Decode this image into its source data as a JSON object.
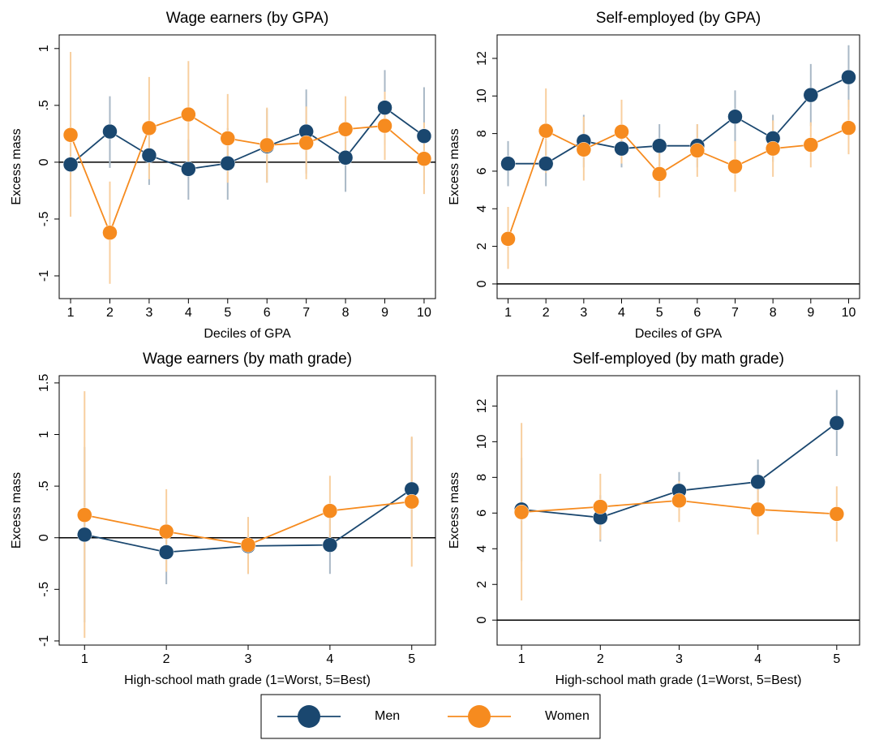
{
  "chart_data": [
    {
      "type": "line",
      "title": "Wage earners (by GPA)",
      "x_label": "Deciles of GPA",
      "y_label": "Excess mass",
      "x": [
        1,
        2,
        3,
        4,
        5,
        6,
        7,
        8,
        9,
        10
      ],
      "xlim": [
        0.71,
        10.29
      ],
      "xticks": [
        1,
        2,
        3,
        4,
        5,
        6,
        7,
        8,
        9,
        10
      ],
      "ylim": [
        -1.2,
        1.12
      ],
      "yticks": [
        {
          "value": -1,
          "label": "-1"
        },
        {
          "value": -0.5,
          "label": "-.5"
        },
        0,
        {
          "value": 0.5,
          "label": ".5"
        },
        1
      ],
      "hline": 0,
      "series": [
        {
          "color": "#1a476f",
          "ci_color": "#a9b8c6",
          "values": [
            -0.02,
            0.27,
            0.06,
            -0.06,
            -0.01,
            0.14,
            0.27,
            0.04,
            0.48,
            0.23
          ],
          "ci_low": [
            -0.32,
            -0.05,
            -0.2,
            -0.33,
            -0.33,
            -0.18,
            -0.1,
            -0.26,
            0.15,
            -0.2
          ],
          "ci_high": [
            0.28,
            0.58,
            0.3,
            0.2,
            0.3,
            0.47,
            0.64,
            0.34,
            0.81,
            0.66
          ]
        },
        {
          "color": "#f68b1f",
          "ci_color": "#f8cf9f",
          "values": [
            0.24,
            -0.62,
            0.3,
            0.42,
            0.21,
            0.15,
            0.17,
            0.29,
            0.32,
            0.03
          ],
          "ci_low": [
            -0.48,
            -1.07,
            -0.15,
            -0.05,
            -0.18,
            -0.18,
            -0.15,
            0.0,
            0.02,
            -0.28
          ],
          "ci_high": [
            0.97,
            -0.17,
            0.75,
            0.89,
            0.6,
            0.48,
            0.49,
            0.58,
            0.62,
            0.35
          ]
        }
      ]
    },
    {
      "type": "line",
      "title": "Self-employed (by GPA)",
      "x_label": "Deciles of GPA",
      "y_label": "Excess mass",
      "x": [
        1,
        2,
        3,
        4,
        5,
        6,
        7,
        8,
        9,
        10
      ],
      "xlim": [
        0.71,
        10.29
      ],
      "xticks": [
        1,
        2,
        3,
        4,
        5,
        6,
        7,
        8,
        9,
        10
      ],
      "ylim": [
        -0.78,
        13.25
      ],
      "yticks": [
        0,
        2,
        4,
        6,
        8,
        10,
        12
      ],
      "hline": 0,
      "series": [
        {
          "color": "#1a476f",
          "ci_color": "#a9b8c6",
          "values": [
            6.4,
            6.4,
            7.6,
            7.2,
            7.35,
            7.35,
            8.9,
            7.75,
            10.05,
            11.0
          ],
          "ci_low": [
            5.2,
            5.2,
            6.2,
            6.2,
            6.3,
            6.2,
            7.5,
            6.5,
            8.4,
            9.4
          ],
          "ci_high": [
            7.6,
            7.6,
            9.0,
            8.2,
            8.5,
            8.5,
            10.3,
            9.0,
            11.7,
            12.7
          ]
        },
        {
          "color": "#f68b1f",
          "ci_color": "#f8cf9f",
          "values": [
            2.4,
            8.15,
            7.15,
            8.1,
            5.85,
            7.1,
            6.25,
            7.2,
            7.4,
            8.3
          ],
          "ci_low": [
            0.8,
            5.9,
            5.5,
            6.4,
            4.6,
            5.7,
            4.9,
            5.7,
            6.2,
            6.9
          ],
          "ci_high": [
            4.1,
            10.4,
            8.9,
            9.8,
            7.2,
            8.5,
            7.6,
            8.7,
            8.6,
            9.8
          ]
        }
      ]
    },
    {
      "type": "line",
      "title": "Wage earners (by math grade)",
      "x_label": "High-school math grade (1=Worst, 5=Best)",
      "y_label": "Excess mass",
      "x": [
        1,
        2,
        3,
        4,
        5
      ],
      "xlim": [
        0.69,
        5.29
      ],
      "xticks": [
        1,
        2,
        3,
        4,
        5
      ],
      "ylim": [
        -1.04,
        1.57
      ],
      "yticks": [
        {
          "value": -1,
          "label": "-1"
        },
        {
          "value": -0.5,
          "label": "-.5"
        },
        0,
        {
          "value": 0.5,
          "label": ".5"
        },
        1,
        1.5
      ],
      "hline": 0,
      "series": [
        {
          "color": "#1a476f",
          "ci_color": "#a9b8c6",
          "values": [
            0.03,
            -0.14,
            -0.08,
            -0.07,
            0.47
          ],
          "ci_low": [
            -0.82,
            -0.45,
            -0.35,
            -0.35,
            0.0
          ],
          "ci_high": [
            0.88,
            0.17,
            0.2,
            0.2,
            0.97
          ]
        },
        {
          "color": "#f68b1f",
          "ci_color": "#f8cf9f",
          "values": [
            0.22,
            0.06,
            -0.07,
            0.26,
            0.35
          ],
          "ci_low": [
            -0.97,
            -0.33,
            -0.35,
            -0.1,
            -0.28
          ],
          "ci_high": [
            1.42,
            0.47,
            0.2,
            0.6,
            0.98
          ]
        }
      ]
    },
    {
      "type": "line",
      "title": "Self-employed (by math grade)",
      "x_label": "High-school math grade (1=Worst, 5=Best)",
      "y_label": "Excess mass",
      "x": [
        1,
        2,
        3,
        4,
        5
      ],
      "xlim": [
        0.69,
        5.29
      ],
      "xticks": [
        1,
        2,
        3,
        4,
        5
      ],
      "ylim": [
        -1.4,
        13.7
      ],
      "yticks": [
        0,
        2,
        4,
        6,
        8,
        10,
        12
      ],
      "hline": 0,
      "series": [
        {
          "color": "#1a476f",
          "ci_color": "#a9b8c6",
          "values": [
            6.2,
            5.75,
            7.25,
            7.75,
            11.05
          ],
          "ci_low": [
            3.3,
            4.4,
            6.1,
            6.5,
            9.2
          ],
          "ci_high": [
            9.1,
            7.0,
            8.3,
            9.0,
            12.9
          ]
        },
        {
          "color": "#f68b1f",
          "ci_color": "#f8cf9f",
          "values": [
            6.05,
            6.35,
            6.7,
            6.2,
            5.95
          ],
          "ci_low": [
            1.1,
            4.5,
            5.5,
            4.8,
            4.4
          ],
          "ci_high": [
            11.05,
            8.2,
            7.8,
            7.6,
            7.5
          ]
        }
      ]
    }
  ],
  "legend": {
    "position": "bottom",
    "entries": [
      {
        "name": "Men",
        "color": "#1a476f"
      },
      {
        "name": "Women",
        "color": "#f68b1f"
      }
    ]
  }
}
